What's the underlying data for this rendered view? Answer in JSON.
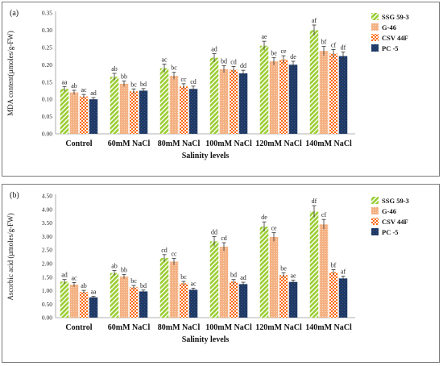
{
  "colors": {
    "series": [
      "#9acd32",
      "#f4b183",
      "#ff6600",
      "#1f3864"
    ],
    "error_bar": "#333333",
    "axis": "#999999"
  },
  "chart_data": [
    {
      "panel_label": "(a)",
      "type": "bar",
      "xlabel": "Salinity levels",
      "ylabel": "MDA content(µmoles/g-FW)",
      "ylim": [
        0,
        0.35
      ],
      "yticks": [
        "0.00",
        "0.05",
        "0.10",
        "0.15",
        "0.20",
        "0.25",
        "0.30",
        "0.35"
      ],
      "categories": [
        "Control",
        "60mM NaCl",
        "80mM NaCl",
        "100mM NaCl",
        "120mM NaCl",
        "140mM NaCl"
      ],
      "legend_position": "right",
      "series": [
        {
          "name": "SSG 59-3",
          "pattern": "stripes-green",
          "values": [
            0.13,
            0.165,
            0.19,
            0.22,
            0.255,
            0.3
          ],
          "errors": [
            0.007,
            0.01,
            0.012,
            0.012,
            0.013,
            0.015
          ],
          "labels": [
            "aa",
            "ab",
            "ac",
            "ad",
            "ae",
            "af"
          ]
        },
        {
          "name": "G-46",
          "pattern": "dots-orange",
          "values": [
            0.12,
            0.145,
            0.168,
            0.187,
            0.21,
            0.24
          ],
          "errors": [
            0.006,
            0.008,
            0.01,
            0.01,
            0.011,
            0.013
          ],
          "labels": [
            "ab",
            "bb",
            "bc",
            "bd",
            "be",
            "bf"
          ]
        },
        {
          "name": "CSV 44F",
          "pattern": "checker-orange",
          "values": [
            0.108,
            0.123,
            0.137,
            0.185,
            0.215,
            0.232
          ],
          "errors": [
            0.006,
            0.007,
            0.008,
            0.01,
            0.011,
            0.012
          ],
          "labels": [
            "ac",
            "bc",
            "cc",
            "cd",
            "ce",
            "cf"
          ]
        },
        {
          "name": "PC -5",
          "pattern": "navy-texture",
          "values": [
            0.1,
            0.125,
            0.13,
            0.175,
            0.2,
            0.225
          ],
          "errors": [
            0.005,
            0.006,
            0.008,
            0.009,
            0.01,
            0.012
          ],
          "labels": [
            "ad",
            "bd",
            "cd",
            "dd",
            "de",
            "df"
          ]
        }
      ]
    },
    {
      "panel_label": "(b)",
      "type": "bar",
      "xlabel": "Salinity levels",
      "ylabel": "Ascorbic acid (µmoles/g-FW)",
      "ylim": [
        0,
        4.5
      ],
      "yticks": [
        "0.00",
        "0.50",
        "1.00",
        "1.50",
        "2.00",
        "2.50",
        "3.00",
        "3.50",
        "4.00",
        "4.50"
      ],
      "categories": [
        "Control",
        "60mM NaCl",
        "80mM NaCl",
        "100mM NaCl",
        "120mM NaCl",
        "140mM NaCl"
      ],
      "legend_position": "right",
      "series": [
        {
          "name": "SSG 59-3",
          "pattern": "stripes-green",
          "values": [
            1.33,
            1.65,
            2.2,
            2.82,
            3.36,
            3.92
          ],
          "errors": [
            0.08,
            0.09,
            0.13,
            0.18,
            0.18,
            0.22
          ],
          "labels": [
            "ad",
            "ab",
            "cd",
            "dd",
            "de",
            "df"
          ]
        },
        {
          "name": "G-46",
          "pattern": "dots-orange",
          "values": [
            1.22,
            1.52,
            2.07,
            2.62,
            2.98,
            3.45
          ],
          "errors": [
            0.08,
            0.08,
            0.12,
            0.15,
            0.16,
            0.18
          ],
          "labels": [
            "ac",
            "bb",
            "cc",
            "cd",
            "ce",
            "cf"
          ]
        },
        {
          "name": "CSV 44F",
          "pattern": "checker-orange",
          "values": [
            0.95,
            1.12,
            1.27,
            1.33,
            1.57,
            1.68
          ],
          "errors": [
            0.06,
            0.07,
            0.07,
            0.08,
            0.09,
            0.09
          ],
          "labels": [
            "ab",
            "bc",
            "bc",
            "bd",
            "be",
            "bf"
          ]
        },
        {
          "name": "PC -5",
          "pattern": "navy-texture",
          "values": [
            0.75,
            0.97,
            1.03,
            1.24,
            1.32,
            1.45
          ],
          "errors": [
            0.04,
            0.05,
            0.06,
            0.07,
            0.07,
            0.08
          ],
          "labels": [
            "aa",
            "bd",
            "ac",
            "ad",
            "ae",
            "af"
          ]
        }
      ]
    }
  ]
}
